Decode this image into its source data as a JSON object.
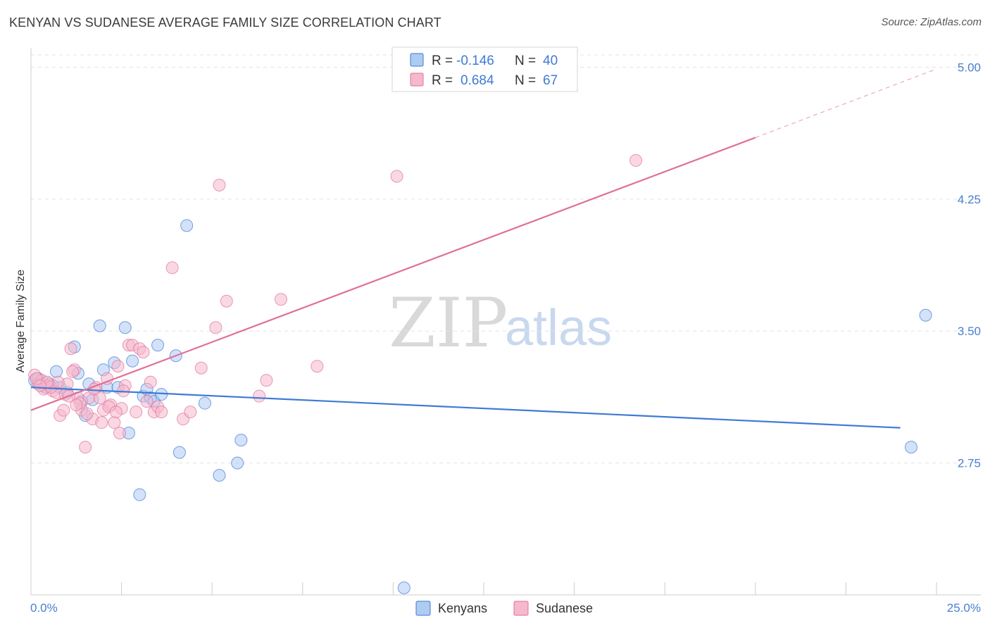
{
  "title": "KENYAN VS SUDANESE AVERAGE FAMILY SIZE CORRELATION CHART",
  "source": "Source: ZipAtlas.com",
  "watermark": {
    "zip": "ZIP",
    "atlas": "atlas"
  },
  "colors": {
    "kenyan": "#3f7ad6",
    "sudanese": "#e07098",
    "kenyanFill": "#aecbf2",
    "sudaneseFill": "#f5b8cc"
  },
  "legend": {
    "kenyan": {
      "r_label": "R = ",
      "r": "-0.146",
      "n_label": "N = ",
      "n": "40"
    },
    "sudanese": {
      "r_label": "R = ",
      "r": "0.684",
      "n_label": "N = ",
      "n": "67"
    }
  },
  "bottom_legend": {
    "kenyan": "Kenyans",
    "sudanese": "Sudanese"
  },
  "chart_data": {
    "type": "scatter",
    "title": "KENYAN VS SUDANESE AVERAGE FAMILY SIZE CORRELATION CHART",
    "xlabel": "",
    "ylabel": "Average Family Size",
    "xlim": [
      0,
      25
    ],
    "ylim": [
      2.0,
      5.07
    ],
    "x_tick_labels": [
      "0.0%",
      "25.0%"
    ],
    "y_ticks": [
      2.75,
      3.5,
      4.25,
      5.0
    ],
    "y_tick_labels": [
      "2.75",
      "3.50",
      "4.25",
      "5.00"
    ],
    "series": [
      {
        "name": "Kenyans",
        "r": -0.146,
        "n": 40,
        "trend": {
          "x": [
            0,
            24
          ],
          "y": [
            3.18,
            2.95
          ]
        },
        "points": [
          [
            0.1,
            3.22
          ],
          [
            0.2,
            3.23
          ],
          [
            0.4,
            3.18
          ],
          [
            0.5,
            3.2
          ],
          [
            0.7,
            3.27
          ],
          [
            0.8,
            3.18
          ],
          [
            1.0,
            3.15
          ],
          [
            1.2,
            3.41
          ],
          [
            1.3,
            3.26
          ],
          [
            1.4,
            3.1
          ],
          [
            1.6,
            3.2
          ],
          [
            1.7,
            3.11
          ],
          [
            1.9,
            3.53
          ],
          [
            2.0,
            3.28
          ],
          [
            2.1,
            3.18
          ],
          [
            2.3,
            3.32
          ],
          [
            2.4,
            3.18
          ],
          [
            2.6,
            3.52
          ],
          [
            2.7,
            2.92
          ],
          [
            2.8,
            3.33
          ],
          [
            3.0,
            2.57
          ],
          [
            3.1,
            3.13
          ],
          [
            3.2,
            3.17
          ],
          [
            3.3,
            3.12
          ],
          [
            3.4,
            3.1
          ],
          [
            3.5,
            3.42
          ],
          [
            3.6,
            3.14
          ],
          [
            4.0,
            3.36
          ],
          [
            4.1,
            2.81
          ],
          [
            4.3,
            4.1
          ],
          [
            4.8,
            3.09
          ],
          [
            5.2,
            2.68
          ],
          [
            5.7,
            2.75
          ],
          [
            5.8,
            2.88
          ],
          [
            10.3,
            2.04
          ],
          [
            24.3,
            2.84
          ],
          [
            24.7,
            3.59
          ],
          [
            0.3,
            3.2
          ],
          [
            0.6,
            3.19
          ],
          [
            1.5,
            3.02
          ]
        ]
      },
      {
        "name": "Sudanese",
        "r": 0.684,
        "n": 67,
        "trend": {
          "x": [
            0,
            20
          ],
          "y": [
            3.05,
            4.6
          ]
        },
        "trend_dashed": {
          "x": [
            20,
            25
          ],
          "y": [
            4.6,
            4.99
          ]
        },
        "points": [
          [
            0.1,
            3.25
          ],
          [
            0.2,
            3.2
          ],
          [
            0.3,
            3.22
          ],
          [
            0.4,
            3.18
          ],
          [
            0.5,
            3.19
          ],
          [
            0.6,
            3.16
          ],
          [
            0.7,
            3.15
          ],
          [
            0.8,
            3.02
          ],
          [
            0.9,
            3.05
          ],
          [
            1.0,
            3.2
          ],
          [
            1.1,
            3.4
          ],
          [
            1.2,
            3.28
          ],
          [
            1.3,
            3.12
          ],
          [
            1.4,
            3.05
          ],
          [
            1.5,
            2.84
          ],
          [
            1.6,
            3.12
          ],
          [
            1.7,
            3.0
          ],
          [
            1.8,
            3.18
          ],
          [
            1.9,
            3.12
          ],
          [
            2.0,
            3.05
          ],
          [
            2.1,
            3.23
          ],
          [
            2.2,
            3.08
          ],
          [
            2.3,
            2.98
          ],
          [
            2.4,
            3.3
          ],
          [
            2.5,
            3.06
          ],
          [
            2.6,
            3.19
          ],
          [
            2.7,
            3.42
          ],
          [
            2.8,
            3.42
          ],
          [
            2.9,
            3.04
          ],
          [
            3.0,
            3.4
          ],
          [
            3.1,
            3.38
          ],
          [
            3.2,
            3.1
          ],
          [
            3.3,
            3.21
          ],
          [
            3.4,
            3.04
          ],
          [
            3.5,
            3.07
          ],
          [
            3.6,
            3.04
          ],
          [
            3.9,
            3.86
          ],
          [
            4.2,
            3.0
          ],
          [
            4.4,
            3.04
          ],
          [
            4.7,
            3.29
          ],
          [
            5.1,
            3.52
          ],
          [
            5.2,
            4.33
          ],
          [
            5.4,
            3.67
          ],
          [
            6.3,
            3.13
          ],
          [
            6.5,
            3.22
          ],
          [
            6.9,
            3.68
          ],
          [
            7.9,
            3.3
          ],
          [
            10.1,
            4.38
          ],
          [
            16.7,
            4.47
          ],
          [
            0.15,
            3.23
          ],
          [
            0.35,
            3.17
          ],
          [
            0.55,
            3.18
          ],
          [
            0.75,
            3.21
          ],
          [
            0.95,
            3.14
          ],
          [
            1.15,
            3.27
          ],
          [
            1.35,
            3.09
          ],
          [
            1.55,
            3.03
          ],
          [
            1.75,
            3.17
          ],
          [
            1.95,
            2.98
          ],
          [
            2.15,
            3.07
          ],
          [
            2.35,
            3.04
          ],
          [
            2.55,
            3.16
          ],
          [
            1.25,
            3.08
          ],
          [
            2.45,
            2.92
          ],
          [
            1.05,
            3.13
          ],
          [
            0.45,
            3.21
          ],
          [
            0.25,
            3.19
          ]
        ]
      }
    ]
  }
}
